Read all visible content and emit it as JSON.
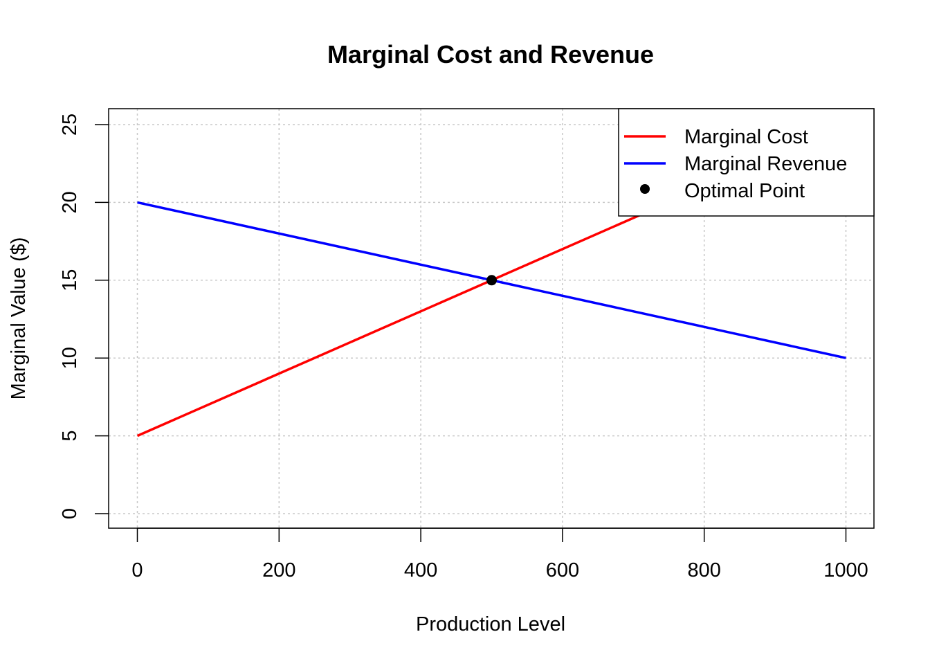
{
  "chart_data": {
    "type": "line",
    "title": "Marginal Cost and Revenue",
    "xlabel": "Production Level",
    "ylabel": "Marginal Value ($)",
    "xlim": [
      0,
      1000
    ],
    "ylim": [
      0,
      25
    ],
    "xticks": [
      0,
      200,
      400,
      600,
      800,
      1000
    ],
    "yticks": [
      0,
      5,
      10,
      15,
      20,
      25
    ],
    "grid": true,
    "legend_position": "top-right",
    "series": [
      {
        "name": "Marginal Cost",
        "color": "#ff0000",
        "style": "line",
        "x": [
          0,
          1000
        ],
        "y": [
          5,
          25
        ]
      },
      {
        "name": "Marginal Revenue",
        "color": "#0000ff",
        "style": "line",
        "x": [
          0,
          1000
        ],
        "y": [
          20,
          10
        ]
      }
    ],
    "points": [
      {
        "name": "Optimal Point",
        "color": "#000000",
        "x": 500,
        "y": 15
      }
    ]
  }
}
